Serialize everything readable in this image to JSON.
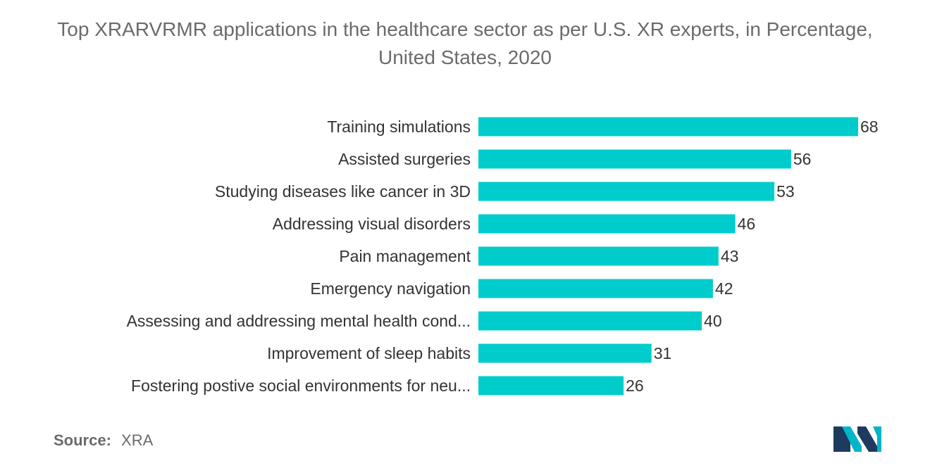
{
  "chart_data": {
    "type": "bar",
    "orientation": "horizontal",
    "title": "Top XRARVRMR applications in the healthcare sector as per U.S. XR experts, in Percentage, United States, 2020",
    "categories": [
      "Training simulations",
      "Assisted surgeries",
      "Studying diseases like cancer in 3D",
      "Addressing visual disorders",
      "Pain management",
      "Emergency navigation",
      "Assessing and addressing mental health cond...",
      "Improvement of sleep habits",
      "Fostering postive social environments for neu..."
    ],
    "values": [
      68,
      56,
      53,
      46,
      43,
      42,
      40,
      31,
      26
    ],
    "xlim": [
      0,
      68
    ],
    "grid": false,
    "legend": "none",
    "bar_color": "#00cccc"
  },
  "source": {
    "label": "Source:",
    "value": "XRA"
  },
  "logo": {
    "icon": "mordor-intelligence-logo-icon",
    "colors": [
      "#1e3a5f",
      "#00b5c8"
    ]
  }
}
